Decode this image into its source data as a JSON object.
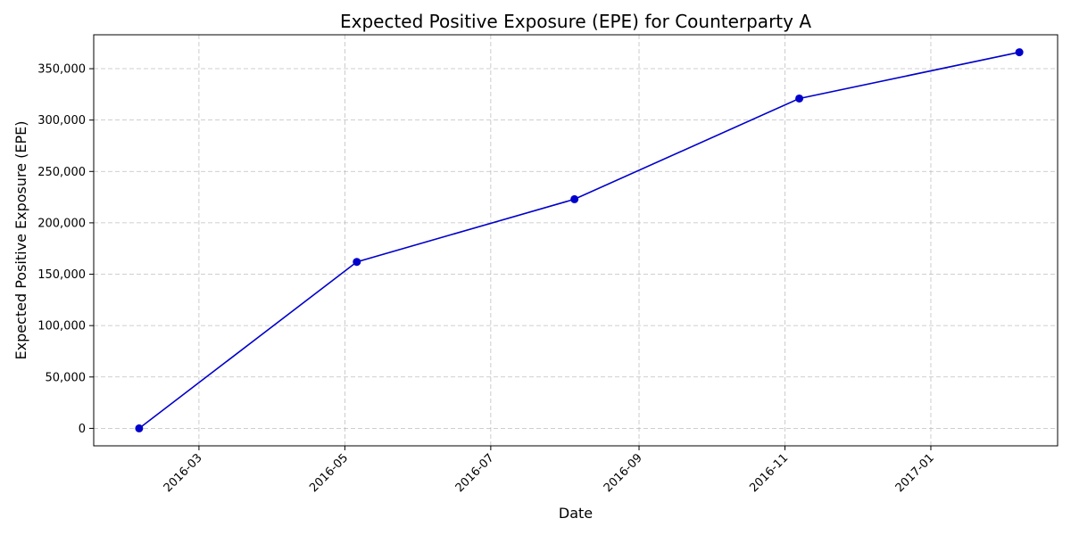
{
  "chart_data": {
    "type": "line",
    "title": "Expected Positive Exposure (EPE) for Counterparty A",
    "xlabel": "Date",
    "ylabel": "Expected Positive Exposure (EPE)",
    "x_axis_type": "date",
    "xlim": [
      "2016-01-17",
      "2017-02-23"
    ],
    "ylim": [
      -17000,
      383000
    ],
    "x_ticks": [
      "2016-03-01",
      "2016-05-01",
      "2016-07-01",
      "2016-09-01",
      "2016-11-01",
      "2017-01-01"
    ],
    "x_tick_labels": [
      "2016-03",
      "2016-05",
      "2016-07",
      "2016-09",
      "2016-11",
      "2017-01"
    ],
    "y_ticks": [
      0,
      50000,
      100000,
      150000,
      200000,
      250000,
      300000,
      350000
    ],
    "y_tick_labels": [
      "0",
      "50,000",
      "100,000",
      "150,000",
      "200,000",
      "250,000",
      "300,000",
      "350,000"
    ],
    "grid": true,
    "series": [
      {
        "color": "#0000cc",
        "marker": "circle",
        "points": [
          {
            "x": "2016-02-05",
            "y": 0
          },
          {
            "x": "2016-05-06",
            "y": 162000
          },
          {
            "x": "2016-08-05",
            "y": 223000
          },
          {
            "x": "2016-11-07",
            "y": 321000
          },
          {
            "x": "2017-02-07",
            "y": 366000
          }
        ]
      }
    ]
  }
}
